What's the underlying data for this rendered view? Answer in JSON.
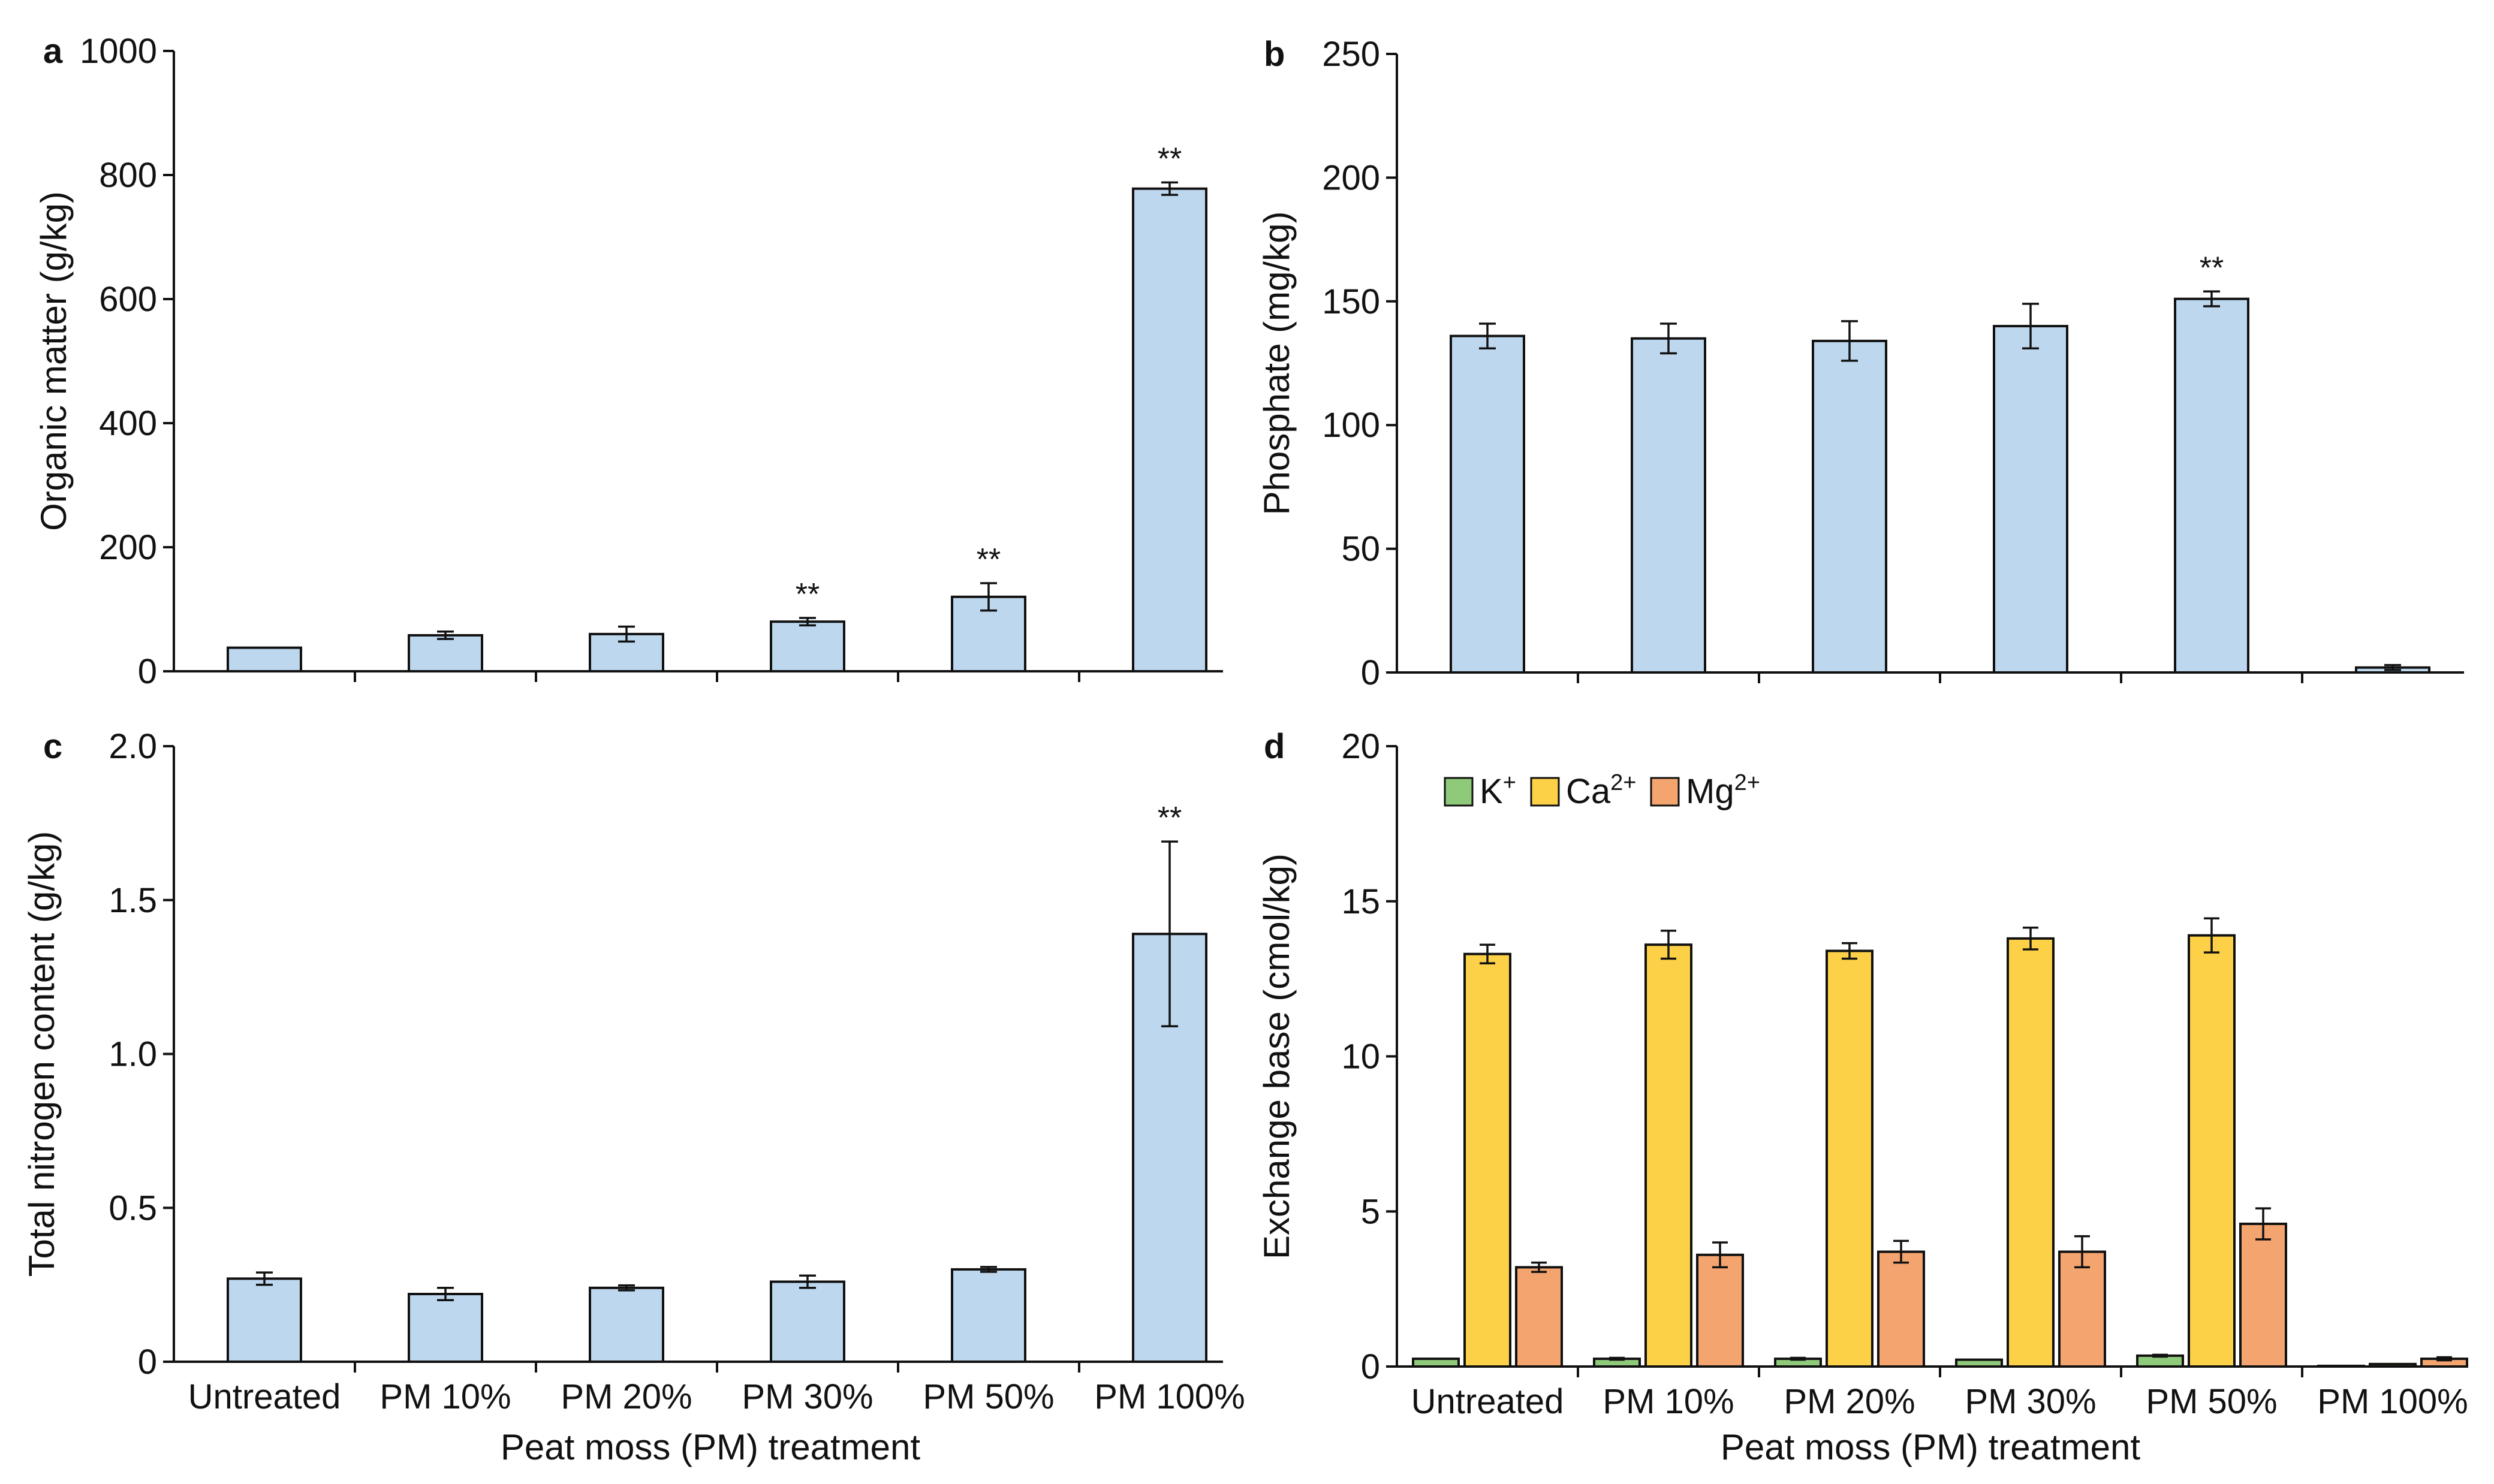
{
  "figure": {
    "x_axis_title": "Peat moss (PM) treatment",
    "colors": {
      "blue": "#bdd7ee",
      "k": "#8fca7a",
      "ca": "#fdd147",
      "mg": "#f4a56f",
      "ink": "#111111"
    }
  },
  "chart_data": [
    {
      "id": "a",
      "panel_label": "a",
      "type": "bar",
      "ylabel": "Organic matter (g/kg)",
      "ylim": [
        0,
        1000
      ],
      "yticks": [
        0,
        200,
        400,
        600,
        800,
        1000
      ],
      "categories": [
        "Untreated",
        "PM 10%",
        "PM 20%",
        "PM 30%",
        "PM 50%",
        "PM 100%"
      ],
      "show_category_labels": false,
      "series": [
        {
          "name": "Organic matter",
          "color": "#bdd7ee",
          "values": [
            38,
            58,
            60,
            80,
            120,
            778
          ],
          "errors": [
            0,
            6,
            12,
            6,
            22,
            10
          ]
        }
      ],
      "annotations": [
        {
          "category": "PM 30%",
          "text": "**"
        },
        {
          "category": "PM 50%",
          "text": "**"
        },
        {
          "category": "PM 100%",
          "text": "**"
        }
      ]
    },
    {
      "id": "b",
      "panel_label": "b",
      "type": "bar",
      "ylabel": "Phosphate (mg/kg)",
      "ylim": [
        0,
        250
      ],
      "yticks": [
        0,
        50,
        100,
        150,
        200,
        250
      ],
      "categories": [
        "Untreated",
        "PM 10%",
        "PM 20%",
        "PM 30%",
        "PM 50%",
        "PM 100%"
      ],
      "show_category_labels": false,
      "series": [
        {
          "name": "Phosphate",
          "color": "#bdd7ee",
          "values": [
            136,
            135,
            134,
            140,
            151,
            2
          ],
          "errors": [
            5,
            6,
            8,
            9,
            3,
            1
          ]
        }
      ],
      "annotations": [
        {
          "category": "PM 50%",
          "text": "**"
        }
      ]
    },
    {
      "id": "c",
      "panel_label": "c",
      "type": "bar",
      "ylabel": "Total nitrogen content (g/kg)",
      "ylim": [
        0,
        2.0
      ],
      "yticks": [
        "0",
        "0.5",
        "1.0",
        "1.5",
        "2.0"
      ],
      "categories": [
        "Untreated",
        "PM 10%",
        "PM 20%",
        "PM 30%",
        "PM 50%",
        "PM 100%"
      ],
      "show_category_labels": true,
      "series": [
        {
          "name": "Total nitrogen",
          "color": "#bdd7ee",
          "values": [
            0.27,
            0.22,
            0.24,
            0.26,
            0.3,
            1.39
          ],
          "errors": [
            0.02,
            0.02,
            0.008,
            0.02,
            0.008,
            0.3
          ]
        }
      ],
      "annotations": [
        {
          "category": "PM 100%",
          "text": "**"
        }
      ]
    },
    {
      "id": "d",
      "panel_label": "d",
      "type": "bar",
      "ylabel": "Exchange base (cmol/kg)",
      "ylim": [
        0,
        20
      ],
      "yticks": [
        0,
        5,
        10,
        15,
        20
      ],
      "categories": [
        "Untreated",
        "PM 10%",
        "PM 20%",
        "PM 30%",
        "PM 50%",
        "PM 100%"
      ],
      "show_category_labels": true,
      "legend": {
        "placement": "top-left"
      },
      "series": [
        {
          "name": "K",
          "sup": "+",
          "color": "#8fca7a",
          "values": [
            0.25,
            0.25,
            0.25,
            0.22,
            0.35,
            0.02
          ],
          "errors": [
            0,
            0.03,
            0.03,
            0,
            0.03,
            0
          ]
        },
        {
          "name": "Ca",
          "sup": "2+",
          "color": "#fdd147",
          "values": [
            13.3,
            13.6,
            13.4,
            13.8,
            13.9,
            0.08
          ],
          "errors": [
            0.3,
            0.45,
            0.25,
            0.35,
            0.55,
            0
          ]
        },
        {
          "name": "Mg",
          "sup": "2+",
          "color": "#f4a56f",
          "values": [
            3.2,
            3.6,
            3.7,
            3.7,
            4.6,
            0.25
          ],
          "errors": [
            0.15,
            0.4,
            0.35,
            0.5,
            0.5,
            0.05
          ]
        }
      ],
      "annotations": []
    }
  ]
}
